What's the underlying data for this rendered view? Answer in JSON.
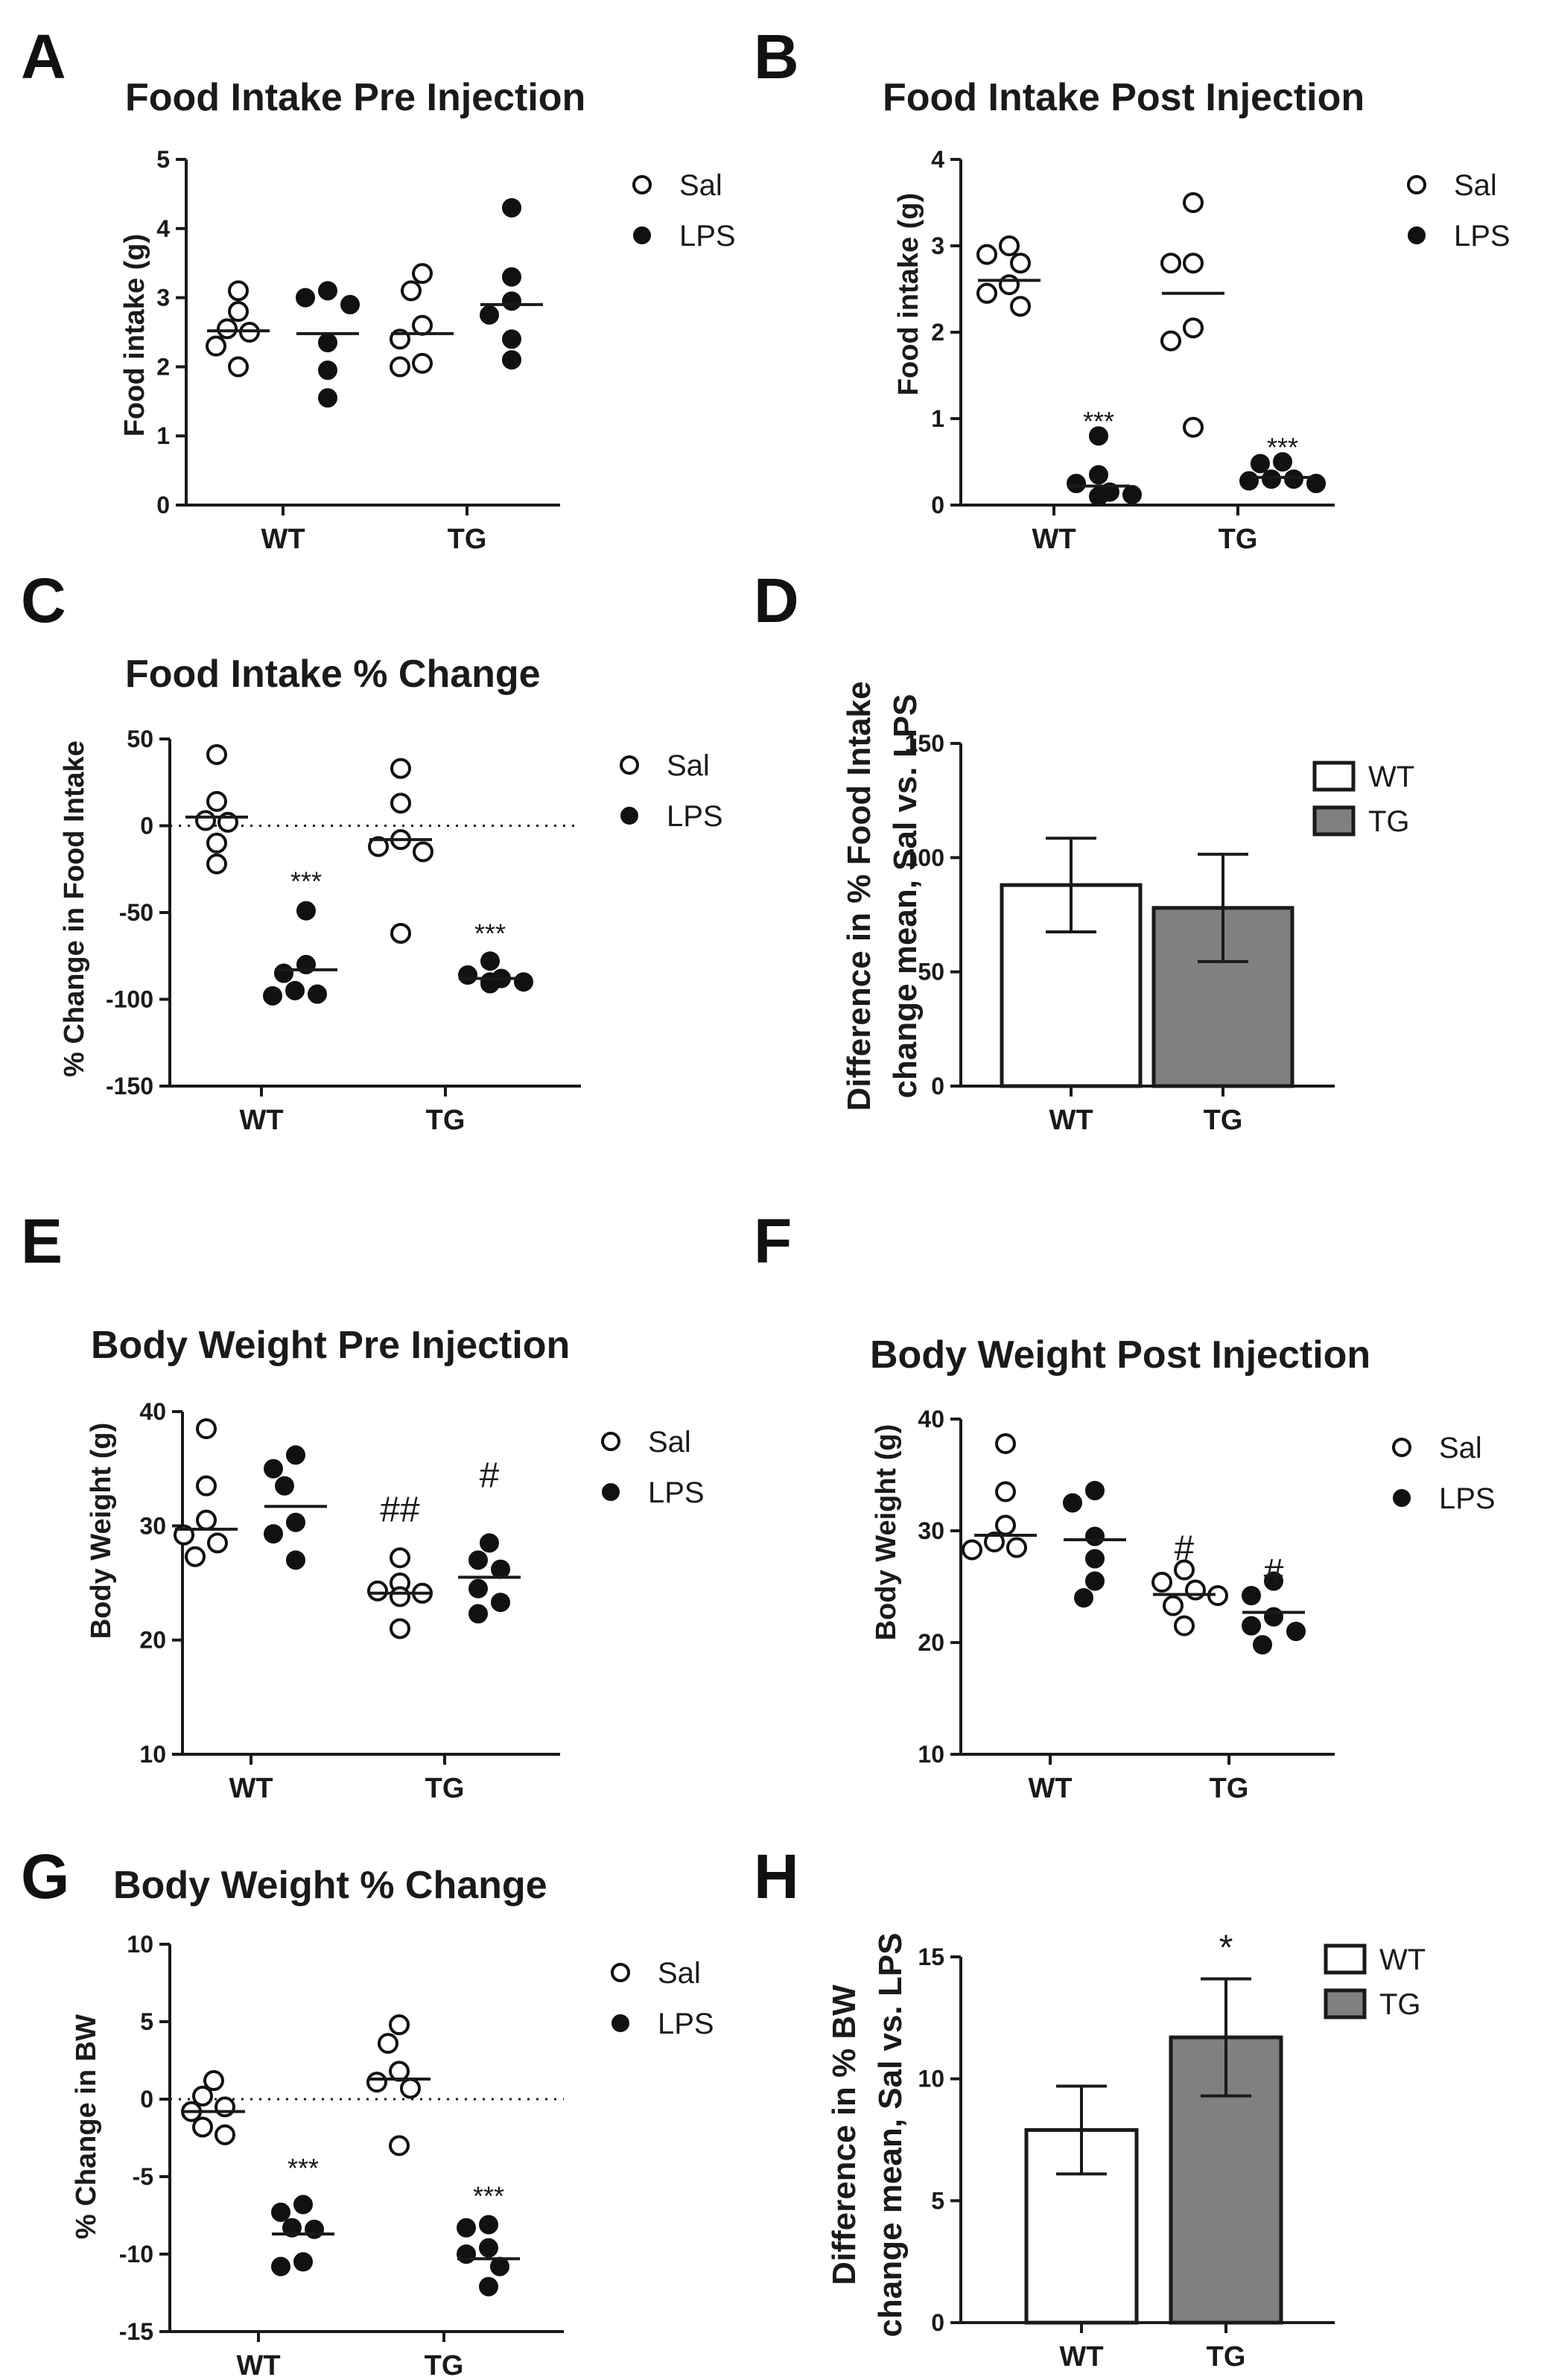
{
  "chart_data": [
    {
      "panel": "A",
      "type": "scatter",
      "title": "Food Intake Pre Injection",
      "ylabel": "Food intake (g)",
      "ylim": [
        0,
        5
      ],
      "yticks": [
        0,
        1,
        2,
        3,
        4,
        5
      ],
      "categories": [
        "WT",
        "TG"
      ],
      "legend": [
        "Sal",
        "LPS"
      ],
      "legend_position": "right",
      "series": [
        {
          "name": "Sal",
          "marker": "open",
          "groups": [
            [
              3.1,
              2.8,
              2.55,
              2.5,
              2.3,
              2.0
            ],
            [
              3.35,
              3.1,
              2.6,
              2.4,
              2.05,
              2.0
            ]
          ],
          "means": [
            2.52,
            2.48
          ]
        },
        {
          "name": "LPS",
          "marker": "filled",
          "groups": [
            [
              3.1,
              3.0,
              2.9,
              2.35,
              1.95,
              1.55
            ],
            [
              4.3,
              3.3,
              2.95,
              2.75,
              2.4,
              2.1
            ]
          ],
          "means": [
            2.48,
            2.9
          ]
        }
      ],
      "annotations": []
    },
    {
      "panel": "B",
      "type": "scatter",
      "title": "Food Intake Post Injection",
      "ylabel": "Food intake (g)",
      "ylim": [
        0,
        4
      ],
      "yticks": [
        0,
        1,
        2,
        3,
        4
      ],
      "categories": [
        "WT",
        "TG"
      ],
      "legend": [
        "Sal",
        "LPS"
      ],
      "legend_position": "right",
      "series": [
        {
          "name": "Sal",
          "marker": "open",
          "groups": [
            [
              3.0,
              2.9,
              2.8,
              2.55,
              2.45,
              2.3
            ],
            [
              3.5,
              2.8,
              2.8,
              2.05,
              1.9,
              0.9
            ]
          ],
          "means": [
            2.6,
            2.45
          ]
        },
        {
          "name": "LPS",
          "marker": "filled",
          "groups": [
            [
              0.8,
              0.35,
              0.25,
              0.15,
              0.12,
              0.1
            ],
            [
              0.5,
              0.48,
              0.3,
              0.3,
              0.28,
              0.25
            ]
          ],
          "means": [
            0.22,
            0.32
          ]
        }
      ],
      "annotations": [
        {
          "text": "***",
          "category": "WT",
          "series": "LPS",
          "y": 1.05
        },
        {
          "text": "***",
          "category": "TG",
          "series": "LPS",
          "y": 0.75
        }
      ]
    },
    {
      "panel": "C",
      "type": "scatter",
      "title": "Food Intake % Change",
      "ylabel": "% Change in Food Intake",
      "ylim": [
        -150,
        50
      ],
      "yticks": [
        -150,
        -100,
        -50,
        0,
        50
      ],
      "zero_line": true,
      "categories": [
        "WT",
        "TG"
      ],
      "legend": [
        "Sal",
        "LPS"
      ],
      "legend_position": "right",
      "series": [
        {
          "name": "Sal",
          "marker": "open",
          "groups": [
            [
              41,
              14,
              3,
              2,
              -10,
              -22
            ],
            [
              33,
              13,
              -8,
              -12,
              -15,
              -62
            ]
          ],
          "means": [
            5,
            -8
          ]
        },
        {
          "name": "LPS",
          "marker": "filled",
          "groups": [
            [
              -49,
              -80,
              -85,
              -95,
              -97,
              -98
            ],
            [
              -78,
              -86,
              -88,
              -90,
              -90,
              -91
            ]
          ],
          "means": [
            -83,
            -88
          ]
        }
      ],
      "annotations": [
        {
          "text": "***",
          "category": "WT",
          "series": "LPS",
          "y": -28
        },
        {
          "text": "***",
          "category": "TG",
          "series": "LPS",
          "y": -58
        }
      ]
    },
    {
      "panel": "D",
      "type": "bar",
      "ylabel": "Difference in % Food Intake change mean, Sal vs. LPS",
      "ylabel_lines": [
        "Difference in % Food Intake",
        "change mean, Sal vs. LPS"
      ],
      "ylim": [
        0,
        150
      ],
      "yticks": [
        0,
        50,
        100,
        150
      ],
      "categories": [
        "WT",
        "TG"
      ],
      "values": [
        88,
        78
      ],
      "errors": [
        20.5,
        23.5
      ],
      "legend": [
        "WT",
        "TG"
      ],
      "legend_position": "top-right",
      "annotations": []
    },
    {
      "panel": "E",
      "type": "scatter",
      "title": "Body Weight Pre Injection",
      "ylabel": "Body Weight (g)",
      "ylim": [
        10,
        40
      ],
      "yticks": [
        10,
        20,
        30,
        40
      ],
      "categories": [
        "WT",
        "TG"
      ],
      "legend": [
        "Sal",
        "LPS"
      ],
      "legend_position": "right",
      "series": [
        {
          "name": "Sal",
          "marker": "open",
          "groups": [
            [
              38.5,
              33.5,
              30.5,
              29.2,
              28.5,
              27.3
            ],
            [
              27.2,
              25.0,
              24.3,
              24.1,
              23.8,
              21.0
            ]
          ],
          "means": [
            29.7,
            24.1
          ]
        },
        {
          "name": "LPS",
          "marker": "filled",
          "groups": [
            [
              36.2,
              35.0,
              33.5,
              30.3,
              29.3,
              27.0
            ],
            [
              28.5,
              27.0,
              26.2,
              24.5,
              23.3,
              22.3
            ]
          ],
          "means": [
            31.7,
            25.5
          ]
        }
      ],
      "annotations": [
        {
          "text": "##",
          "category": "TG",
          "series": "Sal",
          "y": 31.3
        },
        {
          "text": "#",
          "category": "TG",
          "series": "LPS",
          "y": 34.3
        }
      ]
    },
    {
      "panel": "F",
      "type": "scatter",
      "title": "Body Weight Post Injection",
      "ylabel": "Body Weight (g)",
      "ylim": [
        10,
        40
      ],
      "yticks": [
        10,
        20,
        30,
        40
      ],
      "categories": [
        "WT",
        "TG"
      ],
      "legend": [
        "Sal",
        "LPS"
      ],
      "legend_position": "right",
      "series": [
        {
          "name": "Sal",
          "marker": "open",
          "groups": [
            [
              37.8,
              33.5,
              30.5,
              29.0,
              28.5,
              28.3
            ],
            [
              26.5,
              25.4,
              24.7,
              24.2,
              23.3,
              21.5
            ]
          ],
          "means": [
            29.6,
            24.3
          ]
        },
        {
          "name": "LPS",
          "marker": "filled",
          "groups": [
            [
              33.6,
              32.5,
              29.5,
              27.5,
              25.5,
              24.0
            ],
            [
              25.5,
              24.2,
              22.3,
              21.5,
              21.0,
              19.8
            ]
          ],
          "means": [
            29.2,
            22.7
          ]
        }
      ],
      "annotations": [
        {
          "text": "#",
          "category": "TG",
          "series": "Sal",
          "y": 28.3
        },
        {
          "text": "#",
          "category": "TG",
          "series": "LPS",
          "y": 26.2
        }
      ]
    },
    {
      "panel": "G",
      "type": "scatter",
      "title": "Body Weight % Change",
      "ylabel": "% Change in BW",
      "ylim": [
        -15,
        10
      ],
      "yticks": [
        -15,
        -10,
        -5,
        0,
        5,
        10
      ],
      "zero_line": true,
      "categories": [
        "WT",
        "TG"
      ],
      "legend": [
        "Sal",
        "LPS"
      ],
      "legend_position": "right",
      "series": [
        {
          "name": "Sal",
          "marker": "open",
          "groups": [
            [
              1.2,
              0.2,
              -0.5,
              -0.8,
              -1.8,
              -2.3
            ],
            [
              4.8,
              3.6,
              1.8,
              1.1,
              0.7,
              -3.0
            ]
          ],
          "means": [
            -0.8,
            1.3
          ]
        },
        {
          "name": "LPS",
          "marker": "filled",
          "groups": [
            [
              -6.8,
              -7.3,
              -8.3,
              -8.4,
              -10.5,
              -10.8
            ],
            [
              -8.1,
              -8.3,
              -9.6,
              -10.0,
              -10.8,
              -12.1
            ]
          ],
          "means": [
            -8.7,
            -10.3
          ]
        }
      ],
      "annotations": [
        {
          "text": "***",
          "category": "WT",
          "series": "LPS",
          "y": -4.0
        },
        {
          "text": "***",
          "category": "TG",
          "series": "LPS",
          "y": -5.8
        }
      ]
    },
    {
      "panel": "H",
      "type": "bar",
      "ylabel": "Difference in % BW change mean, Sal vs. LPS",
      "ylabel_lines": [
        "Difference in % BW",
        "change mean, Sal vs. LPS"
      ],
      "ylim": [
        0,
        15
      ],
      "yticks": [
        0,
        5,
        10,
        15
      ],
      "categories": [
        "WT",
        "TG"
      ],
      "values": [
        7.9,
        11.7
      ],
      "errors": [
        1.8,
        2.4
      ],
      "legend": [
        "WT",
        "TG"
      ],
      "legend_position": "top-right",
      "annotations": [
        {
          "text": "*",
          "category": "TG",
          "y": 15.5
        }
      ]
    }
  ],
  "colors": {
    "axis": "#1a1a1a",
    "open_marker_fill": "#ffffff",
    "filled_marker": "#111111",
    "bar_wt": "#ffffff",
    "bar_tg": "#808080"
  }
}
